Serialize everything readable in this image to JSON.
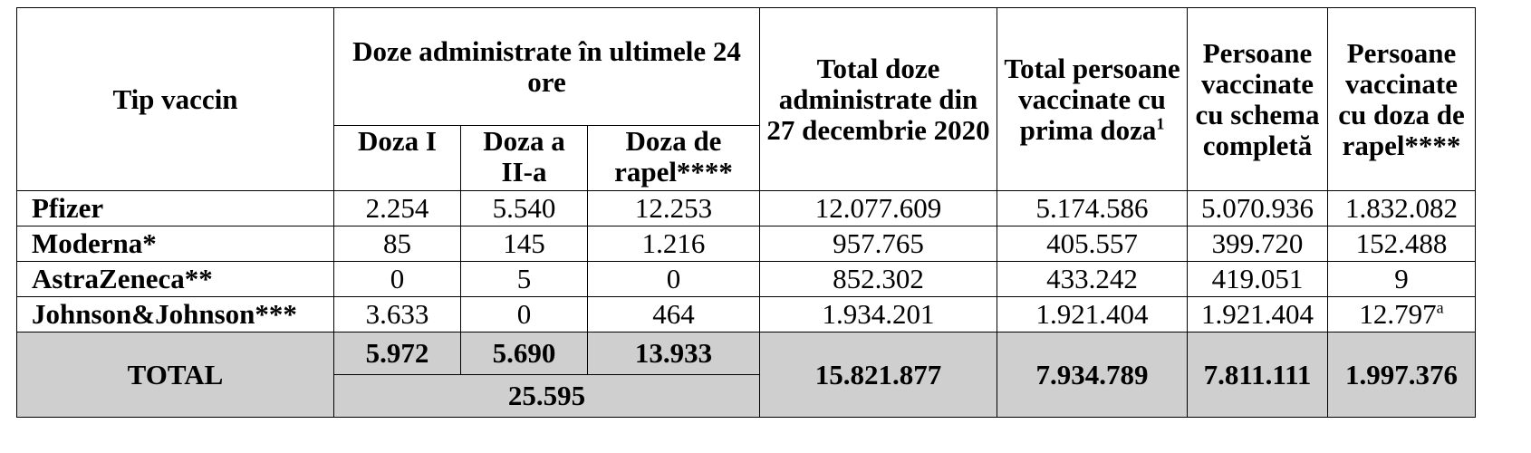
{
  "headers": {
    "tip_vaccin": "Tip vaccin",
    "doze_24h": "Doze administrate în ultimele 24 ore",
    "doza_1": "Doza I",
    "doza_2": "Doza a II-a",
    "doza_rapel": "Doza de rapel****",
    "total_doze": "Total doze administrate din 27 decembrie 2020",
    "total_prima": "Total persoane vaccinate cu prima doza",
    "total_prima_sup": "1",
    "schema_completa": "Persoane vaccinate cu schema completă",
    "rapel": "Persoane vaccinate cu doza de rapel****"
  },
  "rows": [
    {
      "name": "Pfizer",
      "d1": "2.254",
      "d2": "5.540",
      "dr": "12.253",
      "total": "12.077.609",
      "prima": "5.174.586",
      "completa": "5.070.936",
      "rapel": "1.832.082",
      "rapel_sup": ""
    },
    {
      "name": "Moderna*",
      "d1": "85",
      "d2": "145",
      "dr": "1.216",
      "total": "957.765",
      "prima": "405.557",
      "completa": "399.720",
      "rapel": "152.488",
      "rapel_sup": ""
    },
    {
      "name": "AstraZeneca**",
      "d1": "0",
      "d2": "5",
      "dr": "0",
      "total": "852.302",
      "prima": "433.242",
      "completa": "419.051",
      "rapel": "9",
      "rapel_sup": ""
    },
    {
      "name": "Johnson&Johnson***",
      "d1": "3.633",
      "d2": "0",
      "dr": "464",
      "total": "1.934.201",
      "prima": "1.921.404",
      "completa": "1.921.404",
      "rapel": "12.797",
      "rapel_sup": "a"
    }
  ],
  "total": {
    "label": "TOTAL",
    "d1": "5.972",
    "d2": "5.690",
    "dr": "13.933",
    "sum_24h": "25.595",
    "total": "15.821.877",
    "prima": "7.934.789",
    "completa": "7.811.111",
    "rapel": "1.997.376"
  }
}
